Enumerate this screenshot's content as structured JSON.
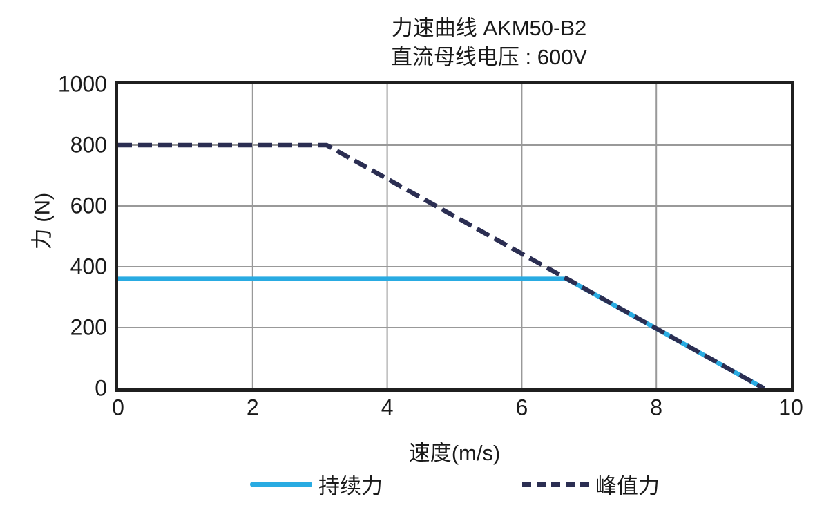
{
  "page": {
    "background": "#ffffff"
  },
  "chart_data": {
    "type": "line",
    "title": "力速曲线 AKM50-B2",
    "subtitle": "直流母线电压 : 600V",
    "xlabel": "速度(m/s)",
    "ylabel": "力 (N)",
    "xlim": [
      0,
      10
    ],
    "ylim": [
      0,
      1000
    ],
    "x_ticks": [
      0,
      2,
      4,
      6,
      8,
      10
    ],
    "y_ticks": [
      0,
      200,
      400,
      600,
      800,
      1000
    ],
    "grid": true,
    "grid_color": "#999999",
    "frame_color": "#1f1f1f",
    "text_color": "#1a1a1a",
    "legend_position": "bottom",
    "series": [
      {
        "id": "continuous-force",
        "name": "持续力",
        "color": "#29ABE2",
        "style": "solid",
        "points": [
          [
            0,
            360
          ],
          [
            6.67,
            360
          ],
          [
            9.6,
            0
          ]
        ]
      },
      {
        "id": "peak-force",
        "name": "峰值力",
        "color": "#2B2E52",
        "style": "dashed",
        "points": [
          [
            0,
            800
          ],
          [
            3.1,
            800
          ],
          [
            9.6,
            0
          ]
        ]
      }
    ]
  }
}
